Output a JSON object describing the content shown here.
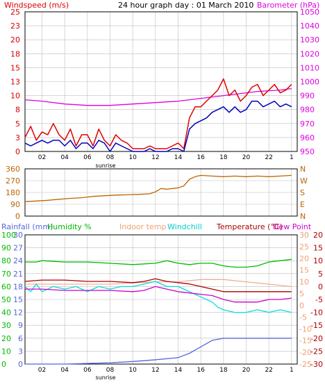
{
  "title": "24 hour graph day : 01 March 2010",
  "colors": {
    "windspeed": "#dd0000",
    "avgwind": "#0000bb",
    "barometer": "#dd00dd",
    "direction": "#bb6600",
    "rainfall": "#5566dd",
    "humidity": "#00bb00",
    "indoor": "#f0b090",
    "windchill": "#00dddd",
    "temperature": "#aa0000",
    "dewpoint": "#cc00cc",
    "grid": "#bdbdbd",
    "axis": "#000000"
  },
  "x_ticks": [
    "02",
    "04",
    "06",
    "08",
    "10",
    "12",
    "14",
    "16",
    "18",
    "20",
    "22",
    "1"
  ],
  "sunrise_label": "sunrise",
  "panel_wind": {
    "left_label": "Windspeed (m/s)",
    "right_label": "Barometer (hPa)",
    "left_ticks": [
      "0",
      "3",
      "5",
      "8",
      "10",
      "13",
      "15",
      "18",
      "20",
      "23",
      "25"
    ],
    "right_ticks": [
      "950",
      "960",
      "970",
      "980",
      "990",
      "1000",
      "1010",
      "1020",
      "1030",
      "1040",
      "1050"
    ]
  },
  "panel_dir": {
    "left_ticks": [
      "0",
      "90",
      "180",
      "270",
      "360"
    ],
    "right_ticks": [
      "N",
      "E",
      "S",
      "W",
      "N"
    ]
  },
  "panel_temp": {
    "labels": {
      "rainfall": "Rainfall (mm)",
      "humidity": "Humidity %",
      "indoor": "Indoor temp",
      "windchill": "Windchill",
      "temperature": "Temperature (°C)",
      "dewpoint": "Dew Point"
    },
    "rain_ticks": [
      "0",
      "3",
      "6",
      "9",
      "12",
      "15",
      "18",
      "21",
      "24",
      "27",
      "30"
    ],
    "hum_ticks": [
      "0",
      "10",
      "20",
      "30",
      "40",
      "50",
      "60",
      "70",
      "80",
      "90",
      "100"
    ],
    "indoor_ticks": [
      "-25",
      "-20",
      "-15",
      "-10",
      "-5",
      "0",
      "5",
      "10",
      "15",
      "20",
      "25",
      "30"
    ],
    "temp_ticks": [
      "-30",
      "-25",
      "-20",
      "-15",
      "-10",
      "-5",
      "0",
      "5",
      "10",
      "15",
      "20"
    ]
  },
  "chart_data": {
    "type": "line",
    "title": "24 hour graph day : 01 March 2010",
    "x_unit": "hours",
    "x_range": [
      0.5,
      24.5
    ],
    "x_ticks": [
      "02",
      "04",
      "06",
      "08",
      "10",
      "12",
      "14",
      "16",
      "18",
      "20",
      "22",
      "1"
    ],
    "panels": [
      {
        "name": "wind",
        "ylim_left": [
          0,
          25
        ],
        "ylim_right": [
          950,
          1050
        ],
        "series": [
          {
            "name": "Windspeed (m/s)",
            "axis": "left",
            "x": [
              0.5,
              1,
              1.5,
              2,
              2.5,
              3,
              3.5,
              4,
              4.5,
              5,
              5.5,
              6,
              6.5,
              7,
              7.5,
              8,
              8.5,
              9,
              9.5,
              10,
              10.5,
              11,
              11.5,
              12,
              12.5,
              13,
              13.5,
              14,
              14.5,
              15,
              15.5,
              16,
              16.5,
              17,
              17.5,
              18,
              18.5,
              19,
              19.5,
              20,
              20.5,
              21,
              21.5,
              22,
              22.5,
              23,
              23.5,
              24
            ],
            "y": [
              2.5,
              4.5,
              2,
              3.5,
              3,
              5,
              3,
              2,
              4,
              1,
              3,
              3,
              1,
              4,
              2,
              1,
              3,
              2,
              1.5,
              0.5,
              0.5,
              0.5,
              1,
              0.5,
              0.5,
              0.5,
              1,
              1.5,
              0.5,
              6,
              8,
              8,
              9,
              10,
              11,
              13,
              10,
              11,
              9,
              10,
              11.5,
              12,
              10,
              11,
              12,
              10.5,
              11,
              12
            ]
          },
          {
            "name": "Average windspeed (m/s)",
            "axis": "left",
            "x": [
              0.5,
              1,
              1.5,
              2,
              2.5,
              3,
              3.5,
              4,
              4.5,
              5,
              5.5,
              6,
              6.5,
              7,
              7.5,
              8,
              8.5,
              9,
              9.5,
              10,
              10.5,
              11,
              11.5,
              12,
              12.5,
              13,
              13.5,
              14,
              14.5,
              15,
              15.5,
              16,
              16.5,
              17,
              17.5,
              18,
              18.5,
              19,
              19.5,
              20,
              20.5,
              21,
              21.5,
              22,
              22.5,
              23,
              23.5,
              24
            ],
            "y": [
              1.5,
              1,
              1.5,
              2,
              1.5,
              2,
              2,
              1,
              2,
              0.5,
              1.5,
              1.5,
              0.5,
              2,
              1.5,
              0,
              1.5,
              1,
              0.5,
              0,
              0,
              0,
              0.5,
              0,
              0,
              0,
              0.5,
              0.5,
              0,
              4,
              5,
              5.5,
              6,
              7,
              7.5,
              8,
              7,
              8,
              7,
              7.5,
              9,
              9,
              8,
              8.5,
              9,
              8,
              8.5,
              8
            ]
          },
          {
            "name": "Barometer (hPa)",
            "axis": "right",
            "x": [
              0.5,
              2,
              4,
              6,
              8,
              10,
              12,
              14,
              15,
              16,
              17,
              18,
              19,
              20,
              21,
              22,
              23,
              24
            ],
            "y": [
              987,
              986,
              984,
              983,
              983,
              984,
              985,
              986,
              987,
              988,
              989,
              990,
              991,
              992,
              993,
              993.5,
              994,
              995
            ]
          }
        ]
      },
      {
        "name": "direction",
        "ylim": [
          0,
          360
        ],
        "series": [
          {
            "name": "Wind direction (deg)",
            "x": [
              0.5,
              1.5,
              2.5,
              3.5,
              4.5,
              5.5,
              6.5,
              7.5,
              8.5,
              9.5,
              10.5,
              11.5,
              12,
              12.5,
              13,
              14,
              14.5,
              15,
              15.5,
              16,
              17,
              18,
              19,
              20,
              21,
              22,
              23,
              24
            ],
            "y": [
              110,
              115,
              120,
              128,
              135,
              140,
              150,
              155,
              160,
              162,
              165,
              170,
              185,
              210,
              205,
              215,
              230,
              280,
              300,
              310,
              305,
              300,
              305,
              300,
              305,
              300,
              305,
              310
            ]
          }
        ]
      },
      {
        "name": "temperature",
        "ylim_rain": [
          0,
          30
        ],
        "ylim_humidity": [
          0,
          100
        ],
        "ylim_indoor": [
          -25,
          30
        ],
        "ylim_temp": [
          -30,
          20
        ],
        "series": [
          {
            "name": "Rainfall (mm)",
            "axis": "rain",
            "x": [
              0.5,
              4,
              8,
              10,
              12,
              14,
              15,
              16,
              17,
              18,
              20,
              22,
              24
            ],
            "y": [
              0,
              0,
              0.3,
              0.6,
              1,
              1.5,
              2.5,
              4,
              5.5,
              6,
              6,
              6,
              6
            ]
          },
          {
            "name": "Humidity %",
            "axis": "humidity",
            "x": [
              0.5,
              1.5,
              2,
              4,
              6,
              8,
              10,
              12,
              13,
              14,
              15,
              16,
              17,
              18,
              19,
              20,
              21,
              22,
              23,
              24
            ],
            "y": [
              79,
              79,
              80,
              79,
              79,
              78,
              77,
              78,
              80,
              78,
              77,
              78,
              78,
              76,
              75,
              75,
              76,
              79,
              80,
              81
            ]
          },
          {
            "name": "Indoor temp",
            "axis": "indoor",
            "x": [
              0.5,
              4,
              8,
              12,
              14,
              16,
              18,
              20,
              22,
              24
            ],
            "y": [
              9,
              9,
              9,
              10,
              10,
              11,
              11,
              10,
              9,
              8
            ]
          },
          {
            "name": "Windchill",
            "axis": "temp",
            "x": [
              0.5,
              1,
              1.5,
              2,
              3,
              4,
              5,
              6,
              7,
              8,
              9,
              10,
              11,
              12,
              13,
              14,
              14.5,
              15,
              16,
              17,
              17.5,
              18,
              19,
              20,
              21,
              22,
              23,
              24
            ],
            "y": [
              0,
              -2,
              1,
              -2,
              0,
              -1,
              0,
              -2,
              0,
              -1,
              0,
              0,
              1,
              2,
              0,
              0,
              -1,
              -2,
              -4,
              -6,
              -8,
              -9,
              -10,
              -10,
              -9,
              -10,
              -9,
              -10
            ]
          },
          {
            "name": "Temperature (°C)",
            "axis": "temp",
            "x": [
              0.5,
              2,
              4,
              6,
              8,
              10,
              11,
              12,
              13,
              14,
              15,
              16,
              17,
              18,
              19,
              20,
              21,
              22,
              23,
              24
            ],
            "y": [
              2,
              2.5,
              2.5,
              2,
              2,
              1.5,
              2,
              3,
              2,
              1.5,
              1,
              0,
              -1,
              -2,
              -2,
              -2,
              -2,
              -2,
              -2,
              -2
            ]
          },
          {
            "name": "Dew Point",
            "axis": "temp",
            "x": [
              0.5,
              2,
              4,
              6,
              8,
              10,
              11,
              12,
              13,
              14,
              15,
              16,
              17,
              18,
              19,
              20,
              21,
              22,
              23,
              24
            ],
            "y": [
              -1,
              -1,
              -1.5,
              -1.5,
              -1.5,
              -2,
              -1.5,
              0,
              -1,
              -2,
              -2.5,
              -3,
              -3.5,
              -5,
              -6,
              -6,
              -6,
              -5,
              -5,
              -4.5
            ]
          }
        ]
      }
    ]
  }
}
